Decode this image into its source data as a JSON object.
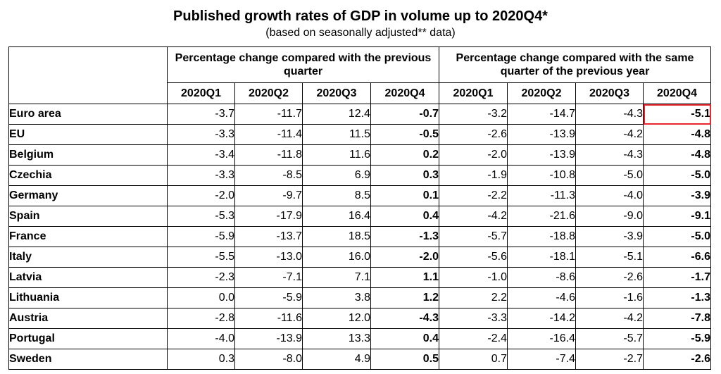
{
  "header": {
    "title": "Published growth rates of GDP in volume up to 2020Q4*",
    "subtitle": "(based on seasonally adjusted** data)"
  },
  "table": {
    "group_qoq": "Percentage change compared with the previous quarter",
    "group_yoy": "Percentage change compared with the same quarter of the previous year",
    "quarters": [
      "2020Q1",
      "2020Q2",
      "2020Q3",
      "2020Q4",
      "2020Q1",
      "2020Q2",
      "2020Q3",
      "2020Q4"
    ],
    "highlight_color": "#e8262e",
    "rows": [
      {
        "country": "Euro area",
        "values": [
          "-3.7",
          "-11.7",
          "12.4",
          "-0.7",
          "-3.2",
          "-14.7",
          "-4.3",
          "-5.1"
        ]
      },
      {
        "country": "EU",
        "values": [
          "-3.3",
          "-11.4",
          "11.5",
          "-0.5",
          "-2.6",
          "-13.9",
          "-4.2",
          "-4.8"
        ]
      },
      {
        "country": "Belgium",
        "values": [
          "-3.4",
          "-11.8",
          "11.6",
          "0.2",
          "-2.0",
          "-13.9",
          "-4.3",
          "-4.8"
        ]
      },
      {
        "country": "Czechia",
        "values": [
          "-3.3",
          "-8.5",
          "6.9",
          "0.3",
          "-1.9",
          "-10.8",
          "-5.0",
          "-5.0"
        ]
      },
      {
        "country": "Germany",
        "values": [
          "-2.0",
          "-9.7",
          "8.5",
          "0.1",
          "-2.2",
          "-11.3",
          "-4.0",
          "-3.9"
        ]
      },
      {
        "country": "Spain",
        "values": [
          "-5.3",
          "-17.9",
          "16.4",
          "0.4",
          "-4.2",
          "-21.6",
          "-9.0",
          "-9.1"
        ]
      },
      {
        "country": "France",
        "values": [
          "-5.9",
          "-13.7",
          "18.5",
          "-1.3",
          "-5.7",
          "-18.8",
          "-3.9",
          "-5.0"
        ]
      },
      {
        "country": "Italy",
        "values": [
          "-5.5",
          "-13.0",
          "16.0",
          "-2.0",
          "-5.6",
          "-18.1",
          "-5.1",
          "-6.6"
        ]
      },
      {
        "country": "Latvia",
        "values": [
          "-2.3",
          "-7.1",
          "7.1",
          "1.1",
          "-1.0",
          "-8.6",
          "-2.6",
          "-1.7"
        ]
      },
      {
        "country": "Lithuania",
        "values": [
          "0.0",
          "-5.9",
          "3.8",
          "1.2",
          "2.2",
          "-4.6",
          "-1.6",
          "-1.3"
        ]
      },
      {
        "country": "Austria",
        "values": [
          "-2.8",
          "-11.6",
          "12.0",
          "-4.3",
          "-3.3",
          "-14.2",
          "-4.2",
          "-7.8"
        ]
      },
      {
        "country": "Portugal",
        "values": [
          "-4.0",
          "-13.9",
          "13.3",
          "0.4",
          "-2.4",
          "-16.4",
          "-5.7",
          "-5.9"
        ]
      },
      {
        "country": "Sweden",
        "values": [
          "0.3",
          "-8.0",
          "4.9",
          "0.5",
          "0.7",
          "-7.4",
          "-2.7",
          "-2.6"
        ]
      }
    ]
  }
}
